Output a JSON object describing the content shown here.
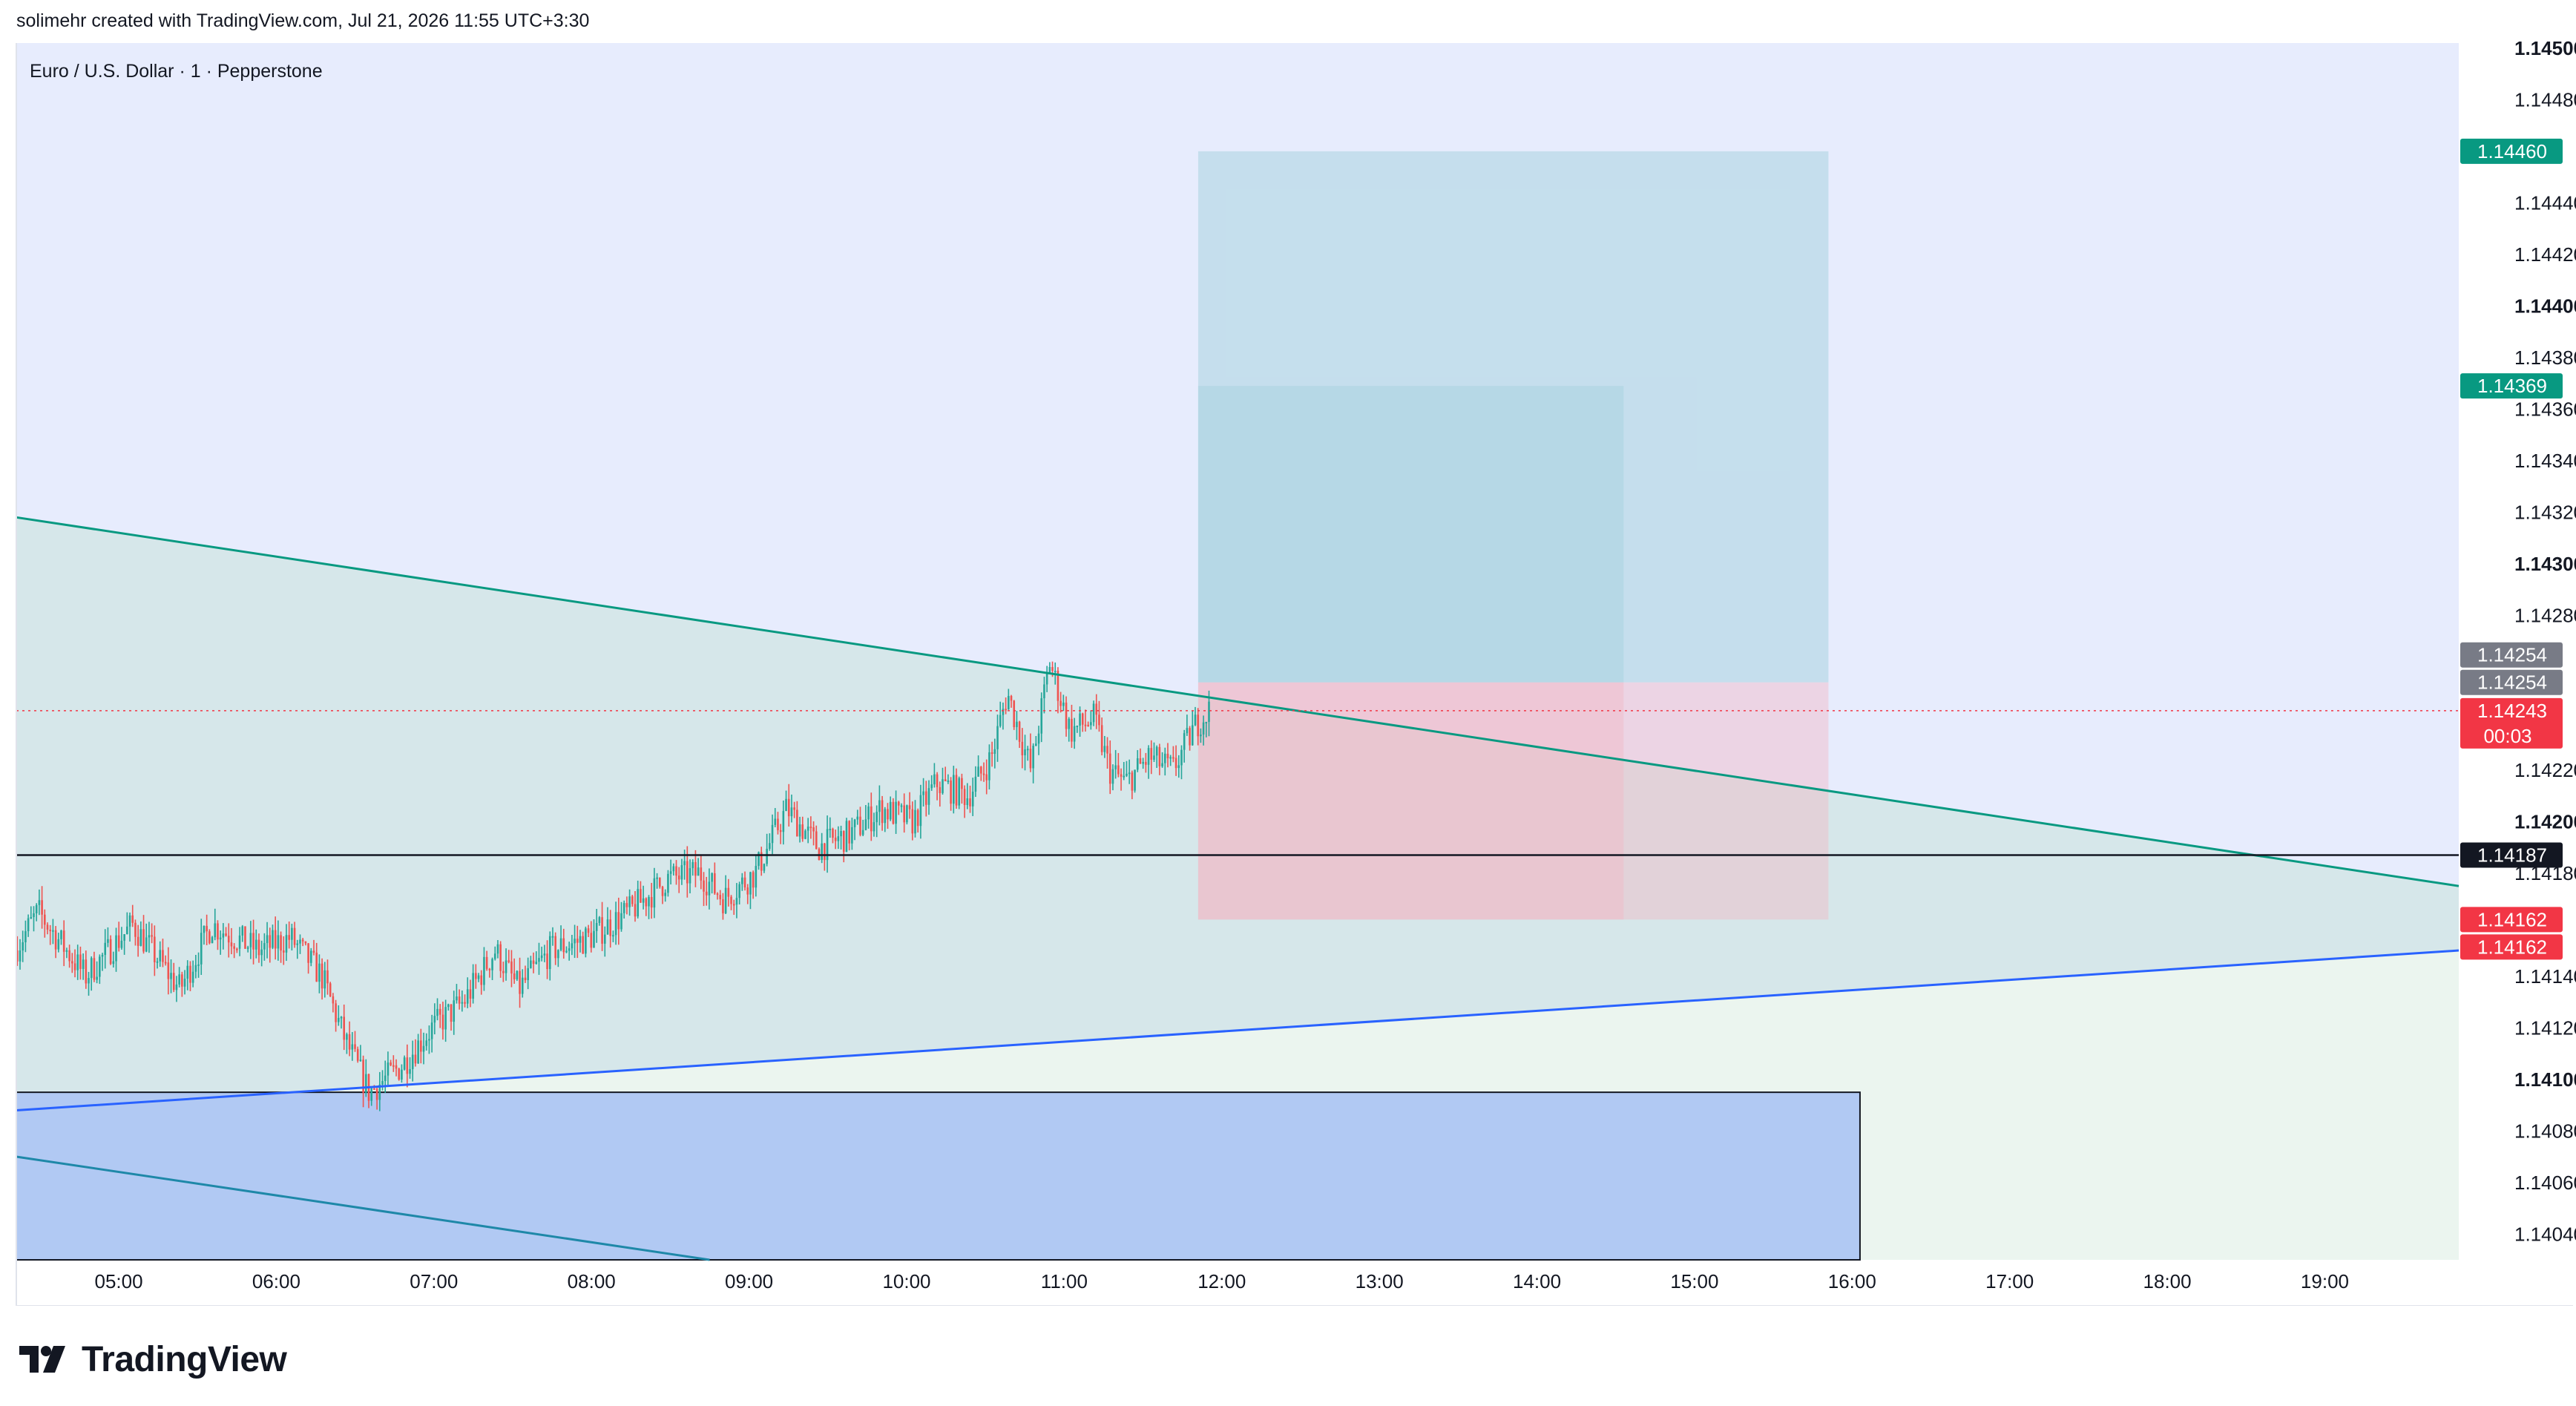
{
  "header": {
    "text": "solimehr created with TradingView.com, Jul 21, 2026 11:55 UTC+3:30"
  },
  "pane": {
    "title": "Euro / U.S. Dollar · 1 · Pepperstone"
  },
  "brand": {
    "name": "TradingView"
  },
  "colors": {
    "background_upper": "#e7ecfd",
    "background_lower": "#ebf5ef",
    "channel_fill": "#d6e7ea",
    "teal_line": "#089981",
    "blue_line": "#2962ff",
    "target_fill": "#a9d4e0",
    "stop_fill": "#f2b8c6",
    "demand_zone": "#b1c9f3",
    "up_candle": "#26a69a",
    "down_candle": "#ef5350",
    "last_price": "#f23645"
  },
  "chart_data": {
    "type": "candlestick",
    "symbol": "Euro / U.S. Dollar",
    "timeframe": "1",
    "source": "Pepperstone",
    "x_ticks": [
      "05:00",
      "06:00",
      "07:00",
      "08:00",
      "09:00",
      "10:00",
      "11:00",
      "12:00",
      "13:00",
      "14:00",
      "15:00",
      "16:00",
      "17:00",
      "18:00",
      "19:00"
    ],
    "x_range_hours": [
      4.35,
      19.85
    ],
    "y_range": [
      1.1403,
      1.14502
    ],
    "y_ticks": [
      {
        "v": 1.145,
        "label": "1.14500",
        "bold": true
      },
      {
        "v": 1.1448,
        "label": "1.14480",
        "bold": false
      },
      {
        "v": 1.1444,
        "label": "1.14440",
        "bold": false
      },
      {
        "v": 1.1442,
        "label": "1.14420",
        "bold": false
      },
      {
        "v": 1.144,
        "label": "1.14400",
        "bold": true
      },
      {
        "v": 1.1438,
        "label": "1.14380",
        "bold": false
      },
      {
        "v": 1.1436,
        "label": "1.14360",
        "bold": false
      },
      {
        "v": 1.1434,
        "label": "1.14340",
        "bold": false
      },
      {
        "v": 1.1432,
        "label": "1.14320",
        "bold": false
      },
      {
        "v": 1.143,
        "label": "1.14300",
        "bold": true
      },
      {
        "v": 1.1428,
        "label": "1.14280",
        "bold": false
      },
      {
        "v": 1.1422,
        "label": "1.14220",
        "bold": false
      },
      {
        "v": 1.142,
        "label": "1.14200",
        "bold": true
      },
      {
        "v": 1.1418,
        "label": "1.14180",
        "bold": false
      },
      {
        "v": 1.1414,
        "label": "1.14140",
        "bold": false
      },
      {
        "v": 1.1412,
        "label": "1.14120",
        "bold": false
      },
      {
        "v": 1.141,
        "label": "1.14100",
        "bold": true
      },
      {
        "v": 1.1408,
        "label": "1.14080",
        "bold": false
      },
      {
        "v": 1.1406,
        "label": "1.14060",
        "bold": false
      },
      {
        "v": 1.1404,
        "label": "1.14040",
        "bold": false
      }
    ],
    "price_tags": [
      {
        "v": 1.1446,
        "label": "1.14460",
        "bg": "#089981",
        "fg": "#ffffff"
      },
      {
        "v": 1.14369,
        "label": "1.14369",
        "bg": "#089981",
        "fg": "#ffffff"
      },
      {
        "v": 1.14254,
        "label": "1.14254",
        "bg": "#787b86",
        "fg": "#ffffff",
        "offset": -1
      },
      {
        "v": 1.14254,
        "label": "1.14254",
        "bg": "#787b86",
        "fg": "#ffffff",
        "offset": 0
      },
      {
        "v": 1.14243,
        "label": "1.14243",
        "bg": "#f23645",
        "fg": "#ffffff",
        "sub": "00:03"
      },
      {
        "v": 1.14187,
        "label": "1.14187",
        "bg": "#131722",
        "fg": "#ffffff"
      },
      {
        "v": 1.14162,
        "label": "1.14162",
        "bg": "#f23645",
        "fg": "#ffffff",
        "offset": 0
      },
      {
        "v": 1.14162,
        "label": "1.14162",
        "bg": "#f23645",
        "fg": "#ffffff",
        "offset": 1
      }
    ],
    "last_price": 1.14243,
    "horizontal_line": 1.14187,
    "trendlines": [
      {
        "name": "upper-channel",
        "color": "#089981",
        "from": [
          4.35,
          1.14318
        ],
        "to": [
          19.85,
          1.14175
        ]
      },
      {
        "name": "lower-channel",
        "color": "#2962ff",
        "from": [
          4.35,
          1.14088
        ],
        "to": [
          19.85,
          1.1415
        ]
      },
      {
        "name": "lower-parallel",
        "color": "#1e88a8",
        "from": [
          4.35,
          1.1407
        ],
        "to": [
          8.75,
          1.1403
        ]
      }
    ],
    "positions": [
      {
        "name": "long-position-wide",
        "entry": 1.14254,
        "target": 1.1446,
        "stop": 1.14162,
        "from": 11.85,
        "to": 15.85
      },
      {
        "name": "long-position-narrow",
        "entry": 1.14254,
        "target": 1.14369,
        "stop": 1.14162,
        "from": 11.85,
        "to": 14.55
      }
    ],
    "demand_zone": {
      "top": 1.14095,
      "bottom": 1.1403,
      "from": 4.35,
      "to": 16.05
    },
    "anchors": [
      [
        4.35,
        1.1415
      ],
      [
        4.5,
        1.14165
      ],
      [
        4.8,
        1.1414
      ],
      [
        5.1,
        1.1416
      ],
      [
        5.4,
        1.14135
      ],
      [
        5.6,
        1.1416
      ],
      [
        5.9,
        1.1415
      ],
      [
        6.1,
        1.14155
      ],
      [
        6.3,
        1.1414
      ],
      [
        6.45,
        1.14115
      ],
      [
        6.6,
        1.14095
      ],
      [
        6.8,
        1.14105
      ],
      [
        7.0,
        1.1412
      ],
      [
        7.2,
        1.1413
      ],
      [
        7.4,
        1.1415
      ],
      [
        7.55,
        1.14135
      ],
      [
        7.75,
        1.1415
      ],
      [
        8.0,
        1.14155
      ],
      [
        8.25,
        1.14165
      ],
      [
        8.5,
        1.14178
      ],
      [
        8.7,
        1.1418
      ],
      [
        8.85,
        1.1417
      ],
      [
        9.05,
        1.1418
      ],
      [
        9.25,
        1.14205
      ],
      [
        9.45,
        1.1419
      ],
      [
        9.65,
        1.14195
      ],
      [
        9.85,
        1.14205
      ],
      [
        10.05,
        1.142
      ],
      [
        10.2,
        1.14215
      ],
      [
        10.4,
        1.1421
      ],
      [
        10.55,
        1.14225
      ],
      [
        10.65,
        1.1425
      ],
      [
        10.8,
        1.1422
      ],
      [
        10.92,
        1.14262
      ],
      [
        11.05,
        1.14235
      ],
      [
        11.2,
        1.1424
      ],
      [
        11.3,
        1.1422
      ],
      [
        11.4,
        1.14215
      ],
      [
        11.55,
        1.14225
      ],
      [
        11.7,
        1.1422
      ],
      [
        11.85,
        1.14238
      ],
      [
        11.93,
        1.14243
      ]
    ],
    "candle_count": 435,
    "seed": 7
  }
}
